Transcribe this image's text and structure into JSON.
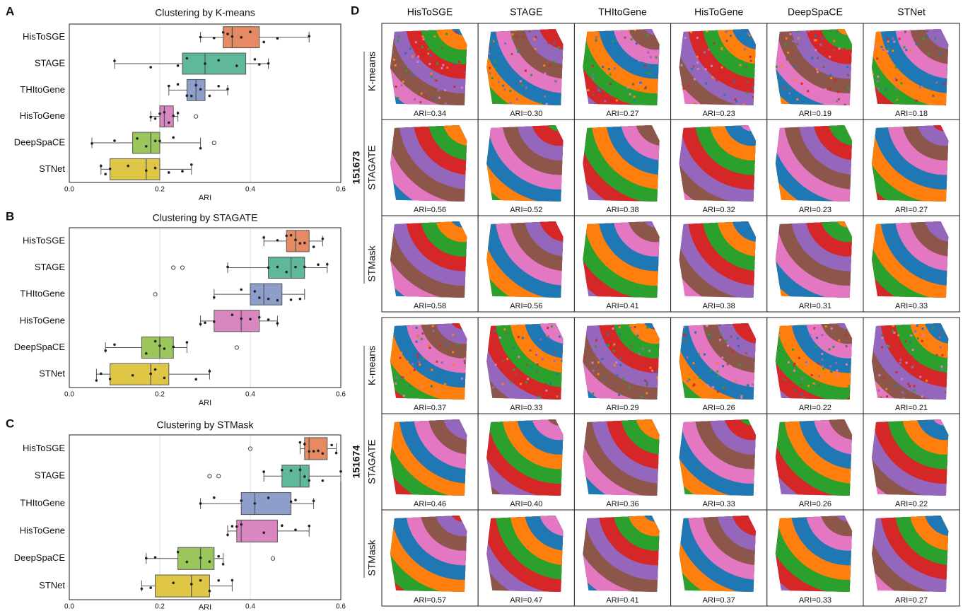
{
  "chart_data": [
    {
      "type": "box",
      "panel": "A",
      "title": "Clustering by K-means",
      "x_label": "ARI",
      "categories": [
        "HisToSGE",
        "STAGE",
        "THItoGene",
        "HisToGene",
        "DeepSpaCE",
        "STNet"
      ],
      "colors": [
        "#e58a62",
        "#5fb89c",
        "#8e9ecb",
        "#d987c0",
        "#9ac65c",
        "#dfc645"
      ],
      "xlim": [
        0,
        0.6
      ],
      "xticks": [
        {
          "value": 0,
          "label": "0.0"
        },
        0.2,
        0.4,
        0.6
      ],
      "grid": true,
      "boxes": [
        {
          "min": 0.29,
          "q1": 0.34,
          "median": 0.36,
          "q3": 0.42,
          "max": 0.53,
          "outliers": [],
          "points": [
            0.29,
            0.32,
            0.34,
            0.35,
            0.36,
            0.38,
            0.4,
            0.43,
            0.46,
            0.53
          ]
        },
        {
          "min": 0.1,
          "q1": 0.25,
          "median": 0.3,
          "q3": 0.39,
          "max": 0.44,
          "outliers": [],
          "points": [
            0.1,
            0.18,
            0.24,
            0.26,
            0.3,
            0.33,
            0.37,
            0.41,
            0.42,
            0.44
          ]
        },
        {
          "min": 0.22,
          "q1": 0.26,
          "median": 0.28,
          "q3": 0.3,
          "max": 0.35,
          "outliers": [],
          "points": [
            0.22,
            0.24,
            0.26,
            0.27,
            0.28,
            0.29,
            0.31,
            0.33,
            0.35
          ]
        },
        {
          "min": 0.18,
          "q1": 0.2,
          "median": 0.21,
          "q3": 0.23,
          "max": 0.24,
          "outliers": [
            0.28
          ],
          "points": [
            0.18,
            0.19,
            0.2,
            0.21,
            0.22,
            0.23,
            0.24
          ]
        },
        {
          "min": 0.05,
          "q1": 0.14,
          "median": 0.18,
          "q3": 0.2,
          "max": 0.29,
          "outliers": [
            0.32
          ],
          "points": [
            0.05,
            0.1,
            0.15,
            0.17,
            0.19,
            0.2,
            0.23,
            0.29
          ]
        },
        {
          "min": 0.07,
          "q1": 0.09,
          "median": 0.17,
          "q3": 0.2,
          "max": 0.27,
          "outliers": [],
          "points": [
            0.07,
            0.08,
            0.09,
            0.13,
            0.17,
            0.19,
            0.22,
            0.25,
            0.27
          ]
        }
      ]
    },
    {
      "type": "box",
      "panel": "B",
      "title": "Clustering by STAGATE",
      "x_label": "ARI",
      "categories": [
        "HisToSGE",
        "STAGE",
        "THItoGene",
        "HisToGene",
        "DeepSpaCE",
        "STNet"
      ],
      "colors": [
        "#e58a62",
        "#5fb89c",
        "#8e9ecb",
        "#d987c0",
        "#9ac65c",
        "#dfc645"
      ],
      "xlim": [
        0,
        0.6
      ],
      "xticks": [
        {
          "value": 0,
          "label": "0.0"
        },
        0.2,
        0.4,
        0.6
      ],
      "grid": true,
      "boxes": [
        {
          "min": 0.43,
          "q1": 0.48,
          "median": 0.5,
          "q3": 0.53,
          "max": 0.56,
          "outliers": [],
          "points": [
            0.43,
            0.46,
            0.48,
            0.49,
            0.5,
            0.51,
            0.52,
            0.54,
            0.56
          ]
        },
        {
          "min": 0.35,
          "q1": 0.44,
          "median": 0.49,
          "q3": 0.52,
          "max": 0.57,
          "outliers": [
            0.23,
            0.25
          ],
          "points": [
            0.35,
            0.44,
            0.46,
            0.48,
            0.5,
            0.52,
            0.55,
            0.57
          ]
        },
        {
          "min": 0.32,
          "q1": 0.4,
          "median": 0.43,
          "q3": 0.47,
          "max": 0.52,
          "outliers": [
            0.19
          ],
          "points": [
            0.32,
            0.38,
            0.41,
            0.42,
            0.44,
            0.46,
            0.49,
            0.51
          ]
        },
        {
          "min": 0.29,
          "q1": 0.32,
          "median": 0.38,
          "q3": 0.42,
          "max": 0.46,
          "outliers": [],
          "points": [
            0.29,
            0.3,
            0.32,
            0.36,
            0.38,
            0.4,
            0.42,
            0.44,
            0.46
          ]
        },
        {
          "min": 0.08,
          "q1": 0.16,
          "median": 0.2,
          "q3": 0.23,
          "max": 0.26,
          "outliers": [
            0.37
          ],
          "points": [
            0.08,
            0.1,
            0.17,
            0.19,
            0.2,
            0.21,
            0.23,
            0.26
          ]
        },
        {
          "min": 0.06,
          "q1": 0.09,
          "median": 0.18,
          "q3": 0.22,
          "max": 0.31,
          "outliers": [],
          "points": [
            0.06,
            0.07,
            0.09,
            0.14,
            0.18,
            0.19,
            0.21,
            0.28,
            0.31
          ]
        }
      ]
    },
    {
      "type": "box",
      "panel": "C",
      "title": "Clustering by STMask",
      "x_label": "ARI",
      "categories": [
        "HisToSGE",
        "STAGE",
        "THItoGene",
        "HisToGene",
        "DeepSpaCE",
        "STNet"
      ],
      "colors": [
        "#e58a62",
        "#5fb89c",
        "#8e9ecb",
        "#d987c0",
        "#9ac65c",
        "#dfc645"
      ],
      "xlim": [
        0,
        0.6
      ],
      "xticks": [
        {
          "value": 0,
          "label": "0.0"
        },
        0.2,
        0.4,
        0.6
      ],
      "grid": true,
      "boxes": [
        {
          "min": 0.51,
          "q1": 0.52,
          "median": 0.53,
          "q3": 0.57,
          "max": 0.59,
          "outliers": [
            0.4
          ],
          "points": [
            0.51,
            0.52,
            0.53,
            0.54,
            0.55,
            0.56,
            0.58,
            0.59
          ]
        },
        {
          "min": 0.43,
          "q1": 0.47,
          "median": 0.51,
          "q3": 0.53,
          "max": 0.6,
          "outliers": [
            0.31,
            0.33
          ],
          "points": [
            0.43,
            0.47,
            0.49,
            0.51,
            0.52,
            0.53,
            0.56,
            0.6
          ]
        },
        {
          "min": 0.29,
          "q1": 0.38,
          "median": 0.41,
          "q3": 0.49,
          "max": 0.54,
          "outliers": [],
          "points": [
            0.29,
            0.32,
            0.38,
            0.41,
            0.44,
            0.49,
            0.5,
            0.54
          ]
        },
        {
          "min": 0.35,
          "q1": 0.37,
          "median": 0.38,
          "q3": 0.46,
          "max": 0.53,
          "outliers": [],
          "points": [
            0.35,
            0.36,
            0.37,
            0.38,
            0.43,
            0.47,
            0.5,
            0.53
          ]
        },
        {
          "min": 0.17,
          "q1": 0.24,
          "median": 0.29,
          "q3": 0.32,
          "max": 0.34,
          "outliers": [
            0.45
          ],
          "points": [
            0.17,
            0.19,
            0.24,
            0.26,
            0.29,
            0.31,
            0.33,
            0.34
          ]
        },
        {
          "min": 0.16,
          "q1": 0.19,
          "median": 0.27,
          "q3": 0.31,
          "max": 0.36,
          "outliers": [],
          "points": [
            0.16,
            0.18,
            0.23,
            0.27,
            0.29,
            0.31,
            0.33,
            0.36
          ]
        }
      ]
    }
  ],
  "panel_d": {
    "label": "D",
    "columns": [
      "HisToSGE",
      "STAGE",
      "THItoGene",
      "HisToGene",
      "DeepSpaCE",
      "STNet"
    ],
    "groups": [
      {
        "sample": "151673",
        "rows": [
          {
            "method": "K-means",
            "ari": [
              "ARI=0.34",
              "ARI=0.30",
              "ARI=0.27",
              "ARI=0.23",
              "ARI=0.19",
              "ARI=0.18"
            ]
          },
          {
            "method": "STAGATE",
            "ari": [
              "ARI=0.56",
              "ARI=0.52",
              "ARI=0.38",
              "ARI=0.32",
              "ARI=0.23",
              "ARI=0.27"
            ]
          },
          {
            "method": "STMask",
            "ari": [
              "ARI=0.58",
              "ARI=0.56",
              "ARI=0.41",
              "ARI=0.38",
              "ARI=0.31",
              "ARI=0.33"
            ]
          }
        ]
      },
      {
        "sample": "151674",
        "rows": [
          {
            "method": "K-means",
            "ari": [
              "ARI=0.37",
              "ARI=0.33",
              "ARI=0.29",
              "ARI=0.26",
              "ARI=0.22",
              "ARI=0.21"
            ]
          },
          {
            "method": "STAGATE",
            "ari": [
              "ARI=0.46",
              "ARI=0.40",
              "ARI=0.36",
              "ARI=0.33",
              "ARI=0.26",
              "ARI=0.22"
            ]
          },
          {
            "method": "STMask",
            "ari": [
              "ARI=0.57",
              "ARI=0.47",
              "ARI=0.41",
              "ARI=0.37",
              "ARI=0.33",
              "ARI=0.27"
            ]
          }
        ]
      }
    ]
  }
}
